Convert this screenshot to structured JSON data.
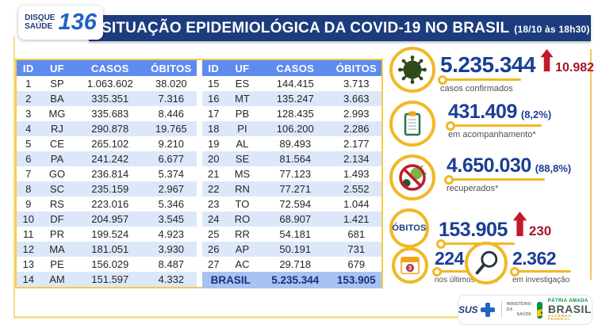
{
  "header": {
    "logo": {
      "line1": "DISQUE",
      "line2": "SAÚDE",
      "number": "136"
    },
    "title": "SITUAÇÃO EPIDEMIOLÓGICA DA COVID-19 NO BRASIL",
    "timestamp": "(18/10 às 18h30)"
  },
  "table": {
    "columns": [
      "ID",
      "UF",
      "CASOS",
      "ÓBITOS"
    ],
    "left_rows": [
      [
        "1",
        "SP",
        "1.063.602",
        "38.020"
      ],
      [
        "2",
        "BA",
        "335.351",
        "7.316"
      ],
      [
        "3",
        "MG",
        "335.683",
        "8.446"
      ],
      [
        "4",
        "RJ",
        "290.878",
        "19.765"
      ],
      [
        "5",
        "CE",
        "265.102",
        "9.210"
      ],
      [
        "6",
        "PA",
        "241.242",
        "6.677"
      ],
      [
        "7",
        "GO",
        "236.814",
        "5.374"
      ],
      [
        "8",
        "SC",
        "235.159",
        "2.967"
      ],
      [
        "9",
        "RS",
        "223.016",
        "5.346"
      ],
      [
        "10",
        "DF",
        "204.957",
        "3.545"
      ],
      [
        "11",
        "PR",
        "199.524",
        "4.923"
      ],
      [
        "12",
        "MA",
        "181.051",
        "3.930"
      ],
      [
        "13",
        "PE",
        "156.029",
        "8.487"
      ],
      [
        "14",
        "AM",
        "151.597",
        "4.332"
      ]
    ],
    "right_rows": [
      [
        "15",
        "ES",
        "144.415",
        "3.713"
      ],
      [
        "16",
        "MT",
        "135.247",
        "3.663"
      ],
      [
        "17",
        "PB",
        "128.435",
        "2.993"
      ],
      [
        "18",
        "PI",
        "106.200",
        "2.286"
      ],
      [
        "19",
        "AL",
        "89.493",
        "2.177"
      ],
      [
        "20",
        "SE",
        "81.564",
        "2.134"
      ],
      [
        "21",
        "MS",
        "77.123",
        "1.493"
      ],
      [
        "22",
        "RN",
        "77.271",
        "2.552"
      ],
      [
        "23",
        "TO",
        "72.594",
        "1.044"
      ],
      [
        "24",
        "RO",
        "68.907",
        "1.421"
      ],
      [
        "25",
        "RR",
        "54.181",
        "681"
      ],
      [
        "26",
        "AP",
        "50.191",
        "731"
      ],
      [
        "27",
        "AC",
        "29.718",
        "679"
      ]
    ],
    "total": {
      "label": "BRASIL",
      "casos": "5.235.344",
      "obitos": "153.905"
    }
  },
  "stats": {
    "confirmed": {
      "value": "5.235.344",
      "delta": "10.982",
      "caption": "casos confirmados"
    },
    "monitoring": {
      "value": "431.409",
      "percent": "(8,2%)",
      "caption": "em acompanhamento*"
    },
    "recovered": {
      "value": "4.650.030",
      "percent": "(88,8%)",
      "caption": "recuperados*"
    },
    "deaths": {
      "label": "ÓBITOS",
      "value": "153.905",
      "delta": "230"
    },
    "last_3_days": {
      "value": "224",
      "caption": "nos últimos 3 dias",
      "badge": "3"
    },
    "investigation": {
      "value": "2.362",
      "caption": "em investigação"
    }
  },
  "footer": {
    "sus": "SUS",
    "ministry_line1": "MINISTÉRIO DA",
    "ministry_line2": "SAÚDE",
    "brand_top": "PÁTRIA AMADA",
    "brand_name": "BRASIL",
    "brand_sub": "GOVERNO FEDERAL"
  },
  "colors": {
    "title_navy": "#1C3C7E",
    "table_header_blue": "#5D8BEE",
    "row_alt_blue": "#DCE8FA",
    "total_row_blue": "#A9C2F2",
    "number_navy": "#1A3E94",
    "alert_red": "#C01A2E",
    "gold": "#F2B824",
    "frame_yellow": "#F2DE8C",
    "virus_green": "#2F4A1A",
    "clipboard_green": "#20784A"
  },
  "chart_data": {
    "type": "table",
    "title": "SITUAÇÃO EPIDEMIOLÓGICA DA COVID-19 NO BRASIL",
    "as_of": "18/10 às 18h30",
    "columns": [
      "ID",
      "UF",
      "CASOS",
      "ÓBITOS"
    ],
    "rows": [
      [
        1,
        "SP",
        1063602,
        38020
      ],
      [
        2,
        "BA",
        335351,
        7316
      ],
      [
        3,
        "MG",
        335683,
        8446
      ],
      [
        4,
        "RJ",
        290878,
        19765
      ],
      [
        5,
        "CE",
        265102,
        9210
      ],
      [
        6,
        "PA",
        241242,
        6677
      ],
      [
        7,
        "GO",
        236814,
        5374
      ],
      [
        8,
        "SC",
        235159,
        2967
      ],
      [
        9,
        "RS",
        223016,
        5346
      ],
      [
        10,
        "DF",
        204957,
        3545
      ],
      [
        11,
        "PR",
        199524,
        4923
      ],
      [
        12,
        "MA",
        181051,
        3930
      ],
      [
        13,
        "PE",
        156029,
        8487
      ],
      [
        14,
        "AM",
        151597,
        4332
      ],
      [
        15,
        "ES",
        144415,
        3713
      ],
      [
        16,
        "MT",
        135247,
        3663
      ],
      [
        17,
        "PB",
        128435,
        2993
      ],
      [
        18,
        "PI",
        106200,
        2286
      ],
      [
        19,
        "AL",
        89493,
        2177
      ],
      [
        20,
        "SE",
        81564,
        2134
      ],
      [
        21,
        "MS",
        77123,
        1493
      ],
      [
        22,
        "RN",
        77271,
        2552
      ],
      [
        23,
        "TO",
        72594,
        1044
      ],
      [
        24,
        "RO",
        68907,
        1421
      ],
      [
        25,
        "RR",
        54181,
        681
      ],
      [
        26,
        "AP",
        50191,
        731
      ],
      [
        27,
        "AC",
        29718,
        679
      ]
    ],
    "total": {
      "uf": "BRASIL",
      "casos": 5235344,
      "obitos": 153905
    },
    "kpis": [
      {
        "label": "casos confirmados",
        "value": 5235344,
        "new": 10982
      },
      {
        "label": "em acompanhamento",
        "value": 431409,
        "percent_of_cases": "8,2%"
      },
      {
        "label": "recuperados",
        "value": 4650030,
        "percent_of_cases": "88,8%"
      },
      {
        "label": "óbitos",
        "value": 153905,
        "new": 230
      },
      {
        "label": "óbitos nos últimos 3 dias",
        "value": 224
      },
      {
        "label": "óbitos em investigação",
        "value": 2362
      }
    ]
  }
}
